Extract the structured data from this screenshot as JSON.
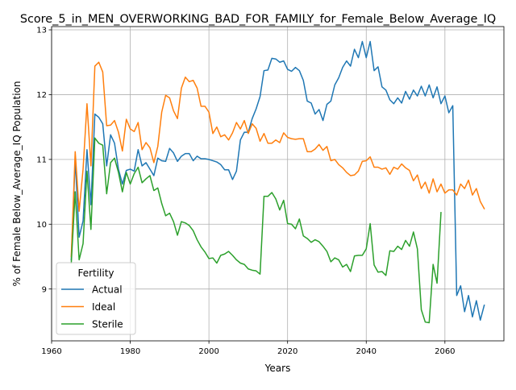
{
  "chart_data": {
    "type": "line",
    "title": "Score_5_in_MEN_OVERWORKING_BAD_FOR_FAMILY_for_Female_Below_Average_IQ",
    "xlabel": "Years",
    "ylabel": "% of Female Below_Average_IQ Population",
    "xlim": [
      1960,
      2075
    ],
    "ylim": [
      8.2,
      13.05
    ],
    "xticks": [
      1960,
      1980,
      2000,
      2020,
      2040,
      2060
    ],
    "yticks": [
      9,
      10,
      11,
      12,
      13
    ],
    "grid": true,
    "legend": {
      "title": "Fertility",
      "placement": "lower-left"
    },
    "series": [
      {
        "name": "Actual",
        "color": "#1f77b4",
        "points": [
          [
            1965,
            9.45
          ],
          [
            1966,
            11.0
          ],
          [
            1967,
            9.8
          ],
          [
            1968,
            10.05
          ],
          [
            1969,
            11.15
          ],
          [
            1970,
            10.3
          ],
          [
            1971,
            11.7
          ],
          [
            1972,
            11.65
          ],
          [
            1973,
            11.55
          ],
          [
            1974,
            10.9
          ],
          [
            1975,
            11.38
          ],
          [
            1976,
            11.25
          ],
          [
            1977,
            10.85
          ],
          [
            1978,
            10.62
          ],
          [
            1979,
            10.83
          ],
          [
            1980,
            10.85
          ],
          [
            1981,
            10.82
          ],
          [
            1982,
            11.15
          ],
          [
            1983,
            10.9
          ],
          [
            1984,
            10.95
          ],
          [
            1985,
            10.85
          ],
          [
            1986,
            10.75
          ],
          [
            1987,
            11.02
          ],
          [
            1988,
            10.98
          ],
          [
            1989,
            10.97
          ],
          [
            1990,
            11.17
          ],
          [
            1991,
            11.1
          ],
          [
            1992,
            10.97
          ],
          [
            1993,
            11.05
          ],
          [
            1994,
            11.09
          ],
          [
            1995,
            11.09
          ],
          [
            1996,
            10.98
          ],
          [
            1997,
            11.05
          ],
          [
            1998,
            11.01
          ],
          [
            1999,
            11.01
          ],
          [
            2000,
            11.0
          ],
          [
            2001,
            10.98
          ],
          [
            2002,
            10.96
          ],
          [
            2003,
            10.92
          ],
          [
            2004,
            10.84
          ],
          [
            2005,
            10.84
          ],
          [
            2006,
            10.69
          ],
          [
            2007,
            10.82
          ],
          [
            2008,
            11.3
          ],
          [
            2009,
            11.42
          ],
          [
            2010,
            11.42
          ],
          [
            2011,
            11.63
          ],
          [
            2012,
            11.78
          ],
          [
            2013,
            11.97
          ],
          [
            2014,
            12.37
          ],
          [
            2015,
            12.38
          ],
          [
            2016,
            12.56
          ],
          [
            2017,
            12.55
          ],
          [
            2018,
            12.5
          ],
          [
            2019,
            12.52
          ],
          [
            2020,
            12.39
          ],
          [
            2021,
            12.36
          ],
          [
            2022,
            12.42
          ],
          [
            2023,
            12.37
          ],
          [
            2024,
            12.22
          ],
          [
            2025,
            11.9
          ],
          [
            2026,
            11.87
          ],
          [
            2027,
            11.7
          ],
          [
            2028,
            11.77
          ],
          [
            2029,
            11.6
          ],
          [
            2030,
            11.85
          ],
          [
            2031,
            11.9
          ],
          [
            2032,
            12.15
          ],
          [
            2033,
            12.26
          ],
          [
            2034,
            12.42
          ],
          [
            2035,
            12.52
          ],
          [
            2036,
            12.44
          ],
          [
            2037,
            12.7
          ],
          [
            2038,
            12.57
          ],
          [
            2039,
            12.82
          ],
          [
            2040,
            12.57
          ],
          [
            2041,
            12.82
          ],
          [
            2042,
            12.37
          ],
          [
            2043,
            12.43
          ],
          [
            2044,
            12.12
          ],
          [
            2045,
            12.07
          ],
          [
            2046,
            11.92
          ],
          [
            2047,
            11.86
          ],
          [
            2048,
            11.95
          ],
          [
            2049,
            11.87
          ],
          [
            2050,
            12.05
          ],
          [
            2051,
            11.93
          ],
          [
            2052,
            12.07
          ],
          [
            2053,
            11.98
          ],
          [
            2054,
            12.13
          ],
          [
            2055,
            11.98
          ],
          [
            2056,
            12.15
          ],
          [
            2057,
            11.95
          ],
          [
            2058,
            12.12
          ],
          [
            2059,
            11.86
          ],
          [
            2060,
            11.98
          ],
          [
            2061,
            11.72
          ],
          [
            2062,
            11.83
          ],
          [
            2063,
            8.9
          ],
          [
            2064,
            9.05
          ],
          [
            2065,
            8.65
          ],
          [
            2066,
            8.9
          ],
          [
            2067,
            8.57
          ],
          [
            2068,
            8.82
          ],
          [
            2069,
            8.52
          ],
          [
            2070,
            8.75
          ]
        ]
      },
      {
        "name": "Ideal",
        "color": "#ff7f0e",
        "points": [
          [
            1965,
            9.5
          ],
          [
            1966,
            11.12
          ],
          [
            1967,
            10.2
          ],
          [
            1968,
            10.85
          ],
          [
            1969,
            11.86
          ],
          [
            1970,
            10.9
          ],
          [
            1971,
            12.44
          ],
          [
            1972,
            12.5
          ],
          [
            1973,
            12.35
          ],
          [
            1974,
            11.52
          ],
          [
            1975,
            11.53
          ],
          [
            1976,
            11.6
          ],
          [
            1977,
            11.42
          ],
          [
            1978,
            11.13
          ],
          [
            1979,
            11.62
          ],
          [
            1980,
            11.47
          ],
          [
            1981,
            11.43
          ],
          [
            1982,
            11.57
          ],
          [
            1983,
            11.15
          ],
          [
            1984,
            11.26
          ],
          [
            1985,
            11.18
          ],
          [
            1986,
            10.95
          ],
          [
            1987,
            11.2
          ],
          [
            1988,
            11.73
          ],
          [
            1989,
            11.99
          ],
          [
            1990,
            11.95
          ],
          [
            1991,
            11.75
          ],
          [
            1992,
            11.63
          ],
          [
            1993,
            12.1
          ],
          [
            1994,
            12.27
          ],
          [
            1995,
            12.2
          ],
          [
            1996,
            12.22
          ],
          [
            1997,
            12.1
          ],
          [
            1998,
            11.82
          ],
          [
            1999,
            11.82
          ],
          [
            2000,
            11.73
          ],
          [
            2001,
            11.4
          ],
          [
            2002,
            11.5
          ],
          [
            2003,
            11.35
          ],
          [
            2004,
            11.38
          ],
          [
            2005,
            11.3
          ],
          [
            2006,
            11.41
          ],
          [
            2007,
            11.57
          ],
          [
            2008,
            11.47
          ],
          [
            2009,
            11.6
          ],
          [
            2010,
            11.4
          ],
          [
            2011,
            11.55
          ],
          [
            2012,
            11.48
          ],
          [
            2013,
            11.28
          ],
          [
            2014,
            11.4
          ],
          [
            2015,
            11.25
          ],
          [
            2016,
            11.25
          ],
          [
            2017,
            11.3
          ],
          [
            2018,
            11.26
          ],
          [
            2019,
            11.41
          ],
          [
            2020,
            11.34
          ],
          [
            2021,
            11.32
          ],
          [
            2022,
            11.31
          ],
          [
            2023,
            11.32
          ],
          [
            2024,
            11.32
          ],
          [
            2025,
            11.12
          ],
          [
            2026,
            11.12
          ],
          [
            2027,
            11.16
          ],
          [
            2028,
            11.23
          ],
          [
            2029,
            11.14
          ],
          [
            2030,
            11.2
          ],
          [
            2031,
            10.98
          ],
          [
            2032,
            11.0
          ],
          [
            2033,
            10.92
          ],
          [
            2034,
            10.87
          ],
          [
            2035,
            10.8
          ],
          [
            2036,
            10.75
          ],
          [
            2037,
            10.76
          ],
          [
            2038,
            10.82
          ],
          [
            2039,
            10.97
          ],
          [
            2040,
            10.98
          ],
          [
            2041,
            11.04
          ],
          [
            2042,
            10.88
          ],
          [
            2043,
            10.88
          ],
          [
            2044,
            10.85
          ],
          [
            2045,
            10.87
          ],
          [
            2046,
            10.77
          ],
          [
            2047,
            10.88
          ],
          [
            2048,
            10.85
          ],
          [
            2049,
            10.93
          ],
          [
            2050,
            10.87
          ],
          [
            2051,
            10.83
          ],
          [
            2052,
            10.67
          ],
          [
            2053,
            10.76
          ],
          [
            2054,
            10.55
          ],
          [
            2055,
            10.65
          ],
          [
            2056,
            10.48
          ],
          [
            2057,
            10.7
          ],
          [
            2058,
            10.5
          ],
          [
            2059,
            10.62
          ],
          [
            2060,
            10.48
          ],
          [
            2061,
            10.53
          ],
          [
            2062,
            10.53
          ],
          [
            2063,
            10.45
          ],
          [
            2064,
            10.62
          ],
          [
            2065,
            10.55
          ],
          [
            2066,
            10.68
          ],
          [
            2067,
            10.45
          ],
          [
            2068,
            10.55
          ],
          [
            2069,
            10.35
          ],
          [
            2070,
            10.24
          ]
        ]
      },
      {
        "name": "Sterile",
        "color": "#2ca02c",
        "points": [
          [
            1965,
            9.4
          ],
          [
            1966,
            10.5
          ],
          [
            1967,
            9.45
          ],
          [
            1968,
            9.7
          ],
          [
            1969,
            10.82
          ],
          [
            1970,
            9.92
          ],
          [
            1971,
            11.33
          ],
          [
            1972,
            11.25
          ],
          [
            1973,
            11.22
          ],
          [
            1974,
            10.47
          ],
          [
            1975,
            10.95
          ],
          [
            1976,
            11.02
          ],
          [
            1977,
            10.8
          ],
          [
            1978,
            10.5
          ],
          [
            1979,
            10.8
          ],
          [
            1980,
            10.62
          ],
          [
            1981,
            10.78
          ],
          [
            1982,
            10.88
          ],
          [
            1983,
            10.64
          ],
          [
            1984,
            10.7
          ],
          [
            1985,
            10.75
          ],
          [
            1986,
            10.52
          ],
          [
            1987,
            10.56
          ],
          [
            1988,
            10.32
          ],
          [
            1989,
            10.13
          ],
          [
            1990,
            10.17
          ],
          [
            1991,
            10.04
          ],
          [
            1992,
            9.83
          ],
          [
            1993,
            10.04
          ],
          [
            1994,
            10.02
          ],
          [
            1995,
            9.98
          ],
          [
            1996,
            9.9
          ],
          [
            1997,
            9.76
          ],
          [
            1998,
            9.65
          ],
          [
            1999,
            9.57
          ],
          [
            2000,
            9.47
          ],
          [
            2001,
            9.48
          ],
          [
            2002,
            9.4
          ],
          [
            2003,
            9.52
          ],
          [
            2004,
            9.54
          ],
          [
            2005,
            9.58
          ],
          [
            2006,
            9.52
          ],
          [
            2007,
            9.45
          ],
          [
            2008,
            9.4
          ],
          [
            2009,
            9.38
          ],
          [
            2010,
            9.31
          ],
          [
            2011,
            9.29
          ],
          [
            2012,
            9.28
          ],
          [
            2013,
            9.23
          ],
          [
            2014,
            10.43
          ],
          [
            2015,
            10.43
          ],
          [
            2016,
            10.49
          ],
          [
            2017,
            10.39
          ],
          [
            2018,
            10.22
          ],
          [
            2019,
            10.37
          ],
          [
            2020,
            10.01
          ],
          [
            2021,
            10.0
          ],
          [
            2022,
            9.93
          ],
          [
            2023,
            10.08
          ],
          [
            2024,
            9.82
          ],
          [
            2025,
            9.78
          ],
          [
            2026,
            9.72
          ],
          [
            2027,
            9.76
          ],
          [
            2028,
            9.73
          ],
          [
            2029,
            9.66
          ],
          [
            2030,
            9.58
          ],
          [
            2031,
            9.42
          ],
          [
            2032,
            9.48
          ],
          [
            2033,
            9.45
          ],
          [
            2034,
            9.34
          ],
          [
            2035,
            9.38
          ],
          [
            2036,
            9.27
          ],
          [
            2037,
            9.51
          ],
          [
            2038,
            9.52
          ],
          [
            2039,
            9.52
          ],
          [
            2040,
            9.62
          ],
          [
            2041,
            10.01
          ],
          [
            2042,
            9.37
          ],
          [
            2043,
            9.26
          ],
          [
            2044,
            9.27
          ],
          [
            2045,
            9.21
          ],
          [
            2046,
            9.59
          ],
          [
            2047,
            9.58
          ],
          [
            2048,
            9.66
          ],
          [
            2049,
            9.61
          ],
          [
            2050,
            9.75
          ],
          [
            2051,
            9.66
          ],
          [
            2052,
            9.88
          ],
          [
            2053,
            9.62
          ],
          [
            2054,
            8.68
          ],
          [
            2055,
            8.49
          ],
          [
            2056,
            8.48
          ],
          [
            2057,
            9.38
          ],
          [
            2058,
            9.09
          ],
          [
            2059,
            10.18
          ]
        ]
      }
    ]
  }
}
